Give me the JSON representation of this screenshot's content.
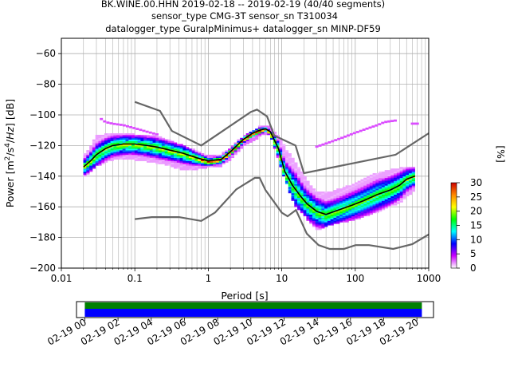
{
  "title_lines": [
    "BK.WINE.00.HHN   2019-02-18 -- 2019-02-19  (40/40 segments)",
    "sensor_type CMG-3T sensor_sn T310034",
    "datalogger_type GuralpMinimus+ datalogger_sn MINP-DF59"
  ],
  "chart_data": {
    "type": "heatmap",
    "xlabel": "Period [s]",
    "ylabel": "Power [m^2/s^4/Hz] [dB]",
    "xscale": "log",
    "xlim": [
      0.01,
      1000
    ],
    "ylim": [
      -200,
      -50
    ],
    "x_ticks": [
      {
        "value": 0.01,
        "label": "0.01"
      },
      {
        "value": 0.1,
        "label": "0.1"
      },
      {
        "value": 1,
        "label": "1"
      },
      {
        "value": 10,
        "label": "10"
      },
      {
        "value": 100,
        "label": "100"
      },
      {
        "value": 1000,
        "label": "1000"
      }
    ],
    "y_ticks": [
      {
        "value": -60,
        "label": "−60"
      },
      {
        "value": -80,
        "label": "−80"
      },
      {
        "value": -100,
        "label": "−100"
      },
      {
        "value": -120,
        "label": "−120"
      },
      {
        "value": -140,
        "label": "−140"
      },
      {
        "value": -160,
        "label": "−160"
      },
      {
        "value": -180,
        "label": "−180"
      },
      {
        "value": -200,
        "label": "−200"
      }
    ],
    "grid": true,
    "nhnm": {
      "x": [
        0.1,
        0.22,
        0.32,
        0.8,
        3.8,
        4.6,
        6.3,
        7.9,
        15.4,
        20,
        354.8,
        1000
      ],
      "y": [
        -91.5,
        -97.4,
        -110.5,
        -120,
        -98,
        -96.5,
        -101,
        -113.5,
        -120,
        -138,
        -126,
        -112
      ]
    },
    "nlnm": {
      "x": [
        0.1,
        0.17,
        0.4,
        0.8,
        1.24,
        2.4,
        4.3,
        5,
        6,
        10,
        12,
        15.6,
        21.9,
        31.6,
        45,
        70,
        101,
        154,
        328,
        600,
        1000
      ],
      "y": [
        -168,
        -166.7,
        -166.7,
        -169.2,
        -163.7,
        -148.6,
        -141.1,
        -141.1,
        -149,
        -163.8,
        -166.2,
        -162.1,
        -177.5,
        -185,
        -187.5,
        -187.5,
        -185,
        -185,
        -187.5,
        -184.4,
        -178
      ]
    },
    "median": {
      "x": [
        0.02,
        0.025,
        0.03,
        0.04,
        0.05,
        0.07,
        0.1,
        0.15,
        0.2,
        0.3,
        0.45,
        0.7,
        1,
        1.5,
        2,
        3,
        4,
        5,
        6,
        7,
        9,
        11,
        14,
        18,
        22,
        30,
        40,
        60,
        90,
        130,
        200,
        300,
        400,
        500,
        650
      ],
      "y": [
        -134,
        -130,
        -126,
        -122,
        -120,
        -119,
        -119,
        -120,
        -121,
        -123,
        -125,
        -128,
        -130,
        -129,
        -124,
        -116,
        -112,
        -110,
        -109,
        -111,
        -122,
        -137,
        -146,
        -153,
        -158,
        -163,
        -165,
        -162,
        -159,
        -156,
        -152,
        -149,
        -146,
        -142,
        -140
      ]
    },
    "percentile_band": {
      "x": [
        0.02,
        0.025,
        0.03,
        0.05,
        0.1,
        0.2,
        0.3,
        0.5,
        1,
        1.5,
        2,
        3,
        5,
        6,
        7,
        9,
        12,
        15,
        20,
        30,
        50,
        100,
        200,
        400,
        650
      ],
      "upper": [
        -127,
        -121,
        -114,
        -112,
        -113,
        -114,
        -117,
        -121,
        -127,
        -126,
        -122,
        -114,
        -108,
        -107,
        -108,
        -114,
        -124,
        -130,
        -140,
        -151,
        -150,
        -145,
        -138,
        -135,
        -134
      ],
      "lower": [
        -139,
        -136,
        -132,
        -128,
        -128,
        -130,
        -132,
        -135,
        -133,
        -132,
        -128,
        -119,
        -113,
        -111,
        -112,
        -128,
        -145,
        -158,
        -164,
        -174,
        -170,
        -167,
        -162,
        -156,
        -148
      ]
    },
    "outliers": [
      {
        "x": [
          0.035,
          0.04,
          0.05,
          0.07,
          0.1,
          0.14,
          0.2
        ],
        "y": [
          -102,
          -104,
          -105,
          -106,
          -108,
          -110,
          -112
        ]
      },
      {
        "x": [
          30,
          40,
          60,
          100,
          150,
          200,
          250,
          350
        ],
        "y": [
          -120,
          -118,
          -115,
          -111,
          -108,
          -106,
          -104,
          -103
        ]
      },
      {
        "x": [
          600,
          700
        ],
        "y": [
          -105,
          -105
        ]
      }
    ],
    "colorbar": {
      "label": "[%]",
      "min": 0,
      "max": 30,
      "ticks": [
        {
          "value": 0,
          "label": "0"
        },
        {
          "value": 5,
          "label": "5"
        },
        {
          "value": 10,
          "label": "10"
        },
        {
          "value": 15,
          "label": "15"
        },
        {
          "value": 20,
          "label": "20"
        },
        {
          "value": 25,
          "label": "25"
        },
        {
          "value": 30,
          "label": "30"
        }
      ],
      "stops": [
        "#ffffff",
        "#cc00ff",
        "#0000ff",
        "#00ffff",
        "#00ff00",
        "#ffff00",
        "#ff8800",
        "#cc0000"
      ]
    },
    "colors": {
      "model_line": "#666666",
      "median_line": "#000000",
      "grid": "#b0b0b0"
    },
    "timeline": {
      "xlim_hours": [
        -0.5,
        21
      ],
      "data_bar_hours": [
        0,
        20.3
      ],
      "ticks": [
        {
          "value": 0,
          "label": "02-19 00"
        },
        {
          "value": 2,
          "label": "02-19 02"
        },
        {
          "value": 4,
          "label": "02-19 04"
        },
        {
          "value": 6,
          "label": "02-19 06"
        },
        {
          "value": 8,
          "label": "02-19 08"
        },
        {
          "value": 10,
          "label": "02-19 10"
        },
        {
          "value": 12,
          "label": "02-19 12"
        },
        {
          "value": 14,
          "label": "02-19 14"
        },
        {
          "value": 16,
          "label": "02-19 16"
        },
        {
          "value": 18,
          "label": "02-19 18"
        },
        {
          "value": 20,
          "label": "02-19 20"
        }
      ],
      "colors": {
        "top": "#008000",
        "bottom": "#0000ff"
      }
    }
  }
}
